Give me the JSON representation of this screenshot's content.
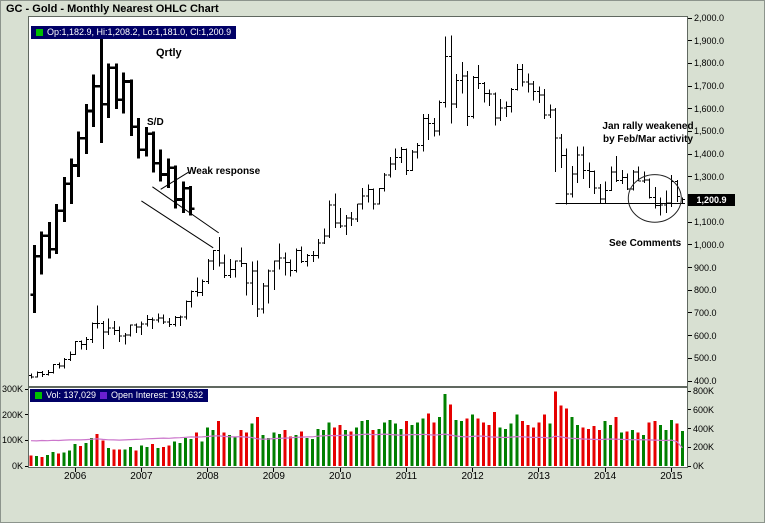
{
  "header": {
    "title": "GC - Gold - Monthly Nearest OHLC Chart"
  },
  "quote_strip": {
    "text": "Op:1,182.9, Hi:1,208.2, Lo:1,181.0, Cl:1,200.9"
  },
  "volume_strip": {
    "vol_label": "Vol: 137,029",
    "oi_label": "Open Interest: 193,632"
  },
  "colors": {
    "strip_bg": "#000066",
    "legend_green": "#00c000",
    "legend_purple": "#6a1fd0",
    "volume_up": "#008000",
    "volume_down": "#e60000",
    "oi_line": "#cc77cc",
    "bar_black": "#000000",
    "current_tag_bg": "#000000",
    "current_tag_fg": "#ffffff",
    "page_bg": "#d8e0d2",
    "panel_bg": "#ffffff"
  },
  "chart_data": {
    "type": "ohlc",
    "title": "GC - Gold - Monthly Nearest OHLC Chart",
    "current_price_label": "1,200.9",
    "annotations": {
      "qrtly": "Qrtly",
      "sd": "S/D",
      "weak_response": "Weak response",
      "jan_rally": [
        "Jan rally weakened",
        "by Feb/Mar activity"
      ],
      "see_comments": "See Comments"
    },
    "price_axis": {
      "min": 400,
      "max": 2000,
      "tick_step": 100,
      "tick_values": [
        2000,
        1900,
        1800,
        1700,
        1600,
        1500,
        1400,
        1300,
        1200,
        1100,
        1000,
        900,
        800,
        700,
        600,
        500,
        400
      ],
      "tick_labels": [
        "2,000.0",
        "1,900.0",
        "1,800.0",
        "1,700.0",
        "1,600.0",
        "1,500.0",
        "1,400.0",
        "1,300.0",
        "1,200.0",
        "1,100.0",
        "1,000.0",
        "900.0",
        "800.0",
        "700.0",
        "600.0",
        "500.0",
        "400.0"
      ]
    },
    "x_axis": {
      "year_labels": [
        "2006",
        "2007",
        "2008",
        "2009",
        "2010",
        "2011",
        "2012",
        "2013",
        "2014",
        "2015"
      ],
      "year_month_indices": [
        8,
        20,
        32,
        44,
        56,
        68,
        80,
        92,
        104,
        116
      ]
    },
    "monthly_ohlc": [
      [
        425,
        432,
        412,
        418
      ],
      [
        418,
        442,
        415,
        437
      ],
      [
        437,
        444,
        418,
        429
      ],
      [
        429,
        448,
        424,
        438
      ],
      [
        438,
        476,
        433,
        472
      ],
      [
        472,
        482,
        456,
        466
      ],
      [
        466,
        502,
        455,
        495
      ],
      [
        495,
        531,
        488,
        517
      ],
      [
        517,
        577,
        515,
        575
      ],
      [
        575,
        579,
        538,
        561
      ],
      [
        561,
        594,
        536,
        582
      ],
      [
        582,
        658,
        568,
        654
      ],
      [
        654,
        732,
        631,
        653
      ],
      [
        653,
        664,
        542,
        616
      ],
      [
        616,
        676,
        603,
        634
      ],
      [
        634,
        664,
        602,
        623
      ],
      [
        623,
        640,
        573,
        599
      ],
      [
        599,
        611,
        560,
        603
      ],
      [
        603,
        650,
        596,
        646
      ],
      [
        646,
        654,
        612,
        638
      ],
      [
        638,
        663,
        602,
        651
      ],
      [
        651,
        692,
        640,
        672
      ],
      [
        672,
        680,
        629,
        669
      ],
      [
        669,
        698,
        657,
        677
      ],
      [
        677,
        693,
        652,
        659
      ],
      [
        659,
        677,
        639,
        650
      ],
      [
        650,
        687,
        640,
        679
      ],
      [
        679,
        688,
        642,
        681
      ],
      [
        681,
        755,
        671,
        750
      ],
      [
        750,
        800,
        725,
        795
      ],
      [
        795,
        856,
        773,
        789
      ],
      [
        789,
        848,
        775,
        838
      ],
      [
        838,
        937,
        827,
        928
      ],
      [
        928,
        978,
        890,
        975
      ],
      [
        975,
        1034,
        904,
        921
      ],
      [
        921,
        957,
        853,
        865
      ],
      [
        865,
        937,
        855,
        891
      ],
      [
        891,
        931,
        856,
        928
      ],
      [
        928,
        989,
        902,
        918
      ],
      [
        918,
        921,
        777,
        833
      ],
      [
        833,
        927,
        736,
        884
      ],
      [
        884,
        931,
        681,
        718
      ],
      [
        718,
        831,
        698,
        819
      ],
      [
        819,
        892,
        741,
        884
      ],
      [
        884,
        931,
        801,
        928
      ],
      [
        928,
        1007,
        892,
        942
      ],
      [
        942,
        966,
        864,
        922
      ],
      [
        922,
        936,
        860,
        888
      ],
      [
        888,
        985,
        879,
        975
      ],
      [
        975,
        992,
        920,
        927
      ],
      [
        927,
        960,
        904,
        953
      ],
      [
        953,
        972,
        925,
        953
      ],
      [
        953,
        1026,
        941,
        1008
      ],
      [
        1008,
        1072,
        1004,
        1040
      ],
      [
        1040,
        1196,
        1031,
        1175
      ],
      [
        1175,
        1227,
        1075,
        1096
      ],
      [
        1096,
        1163,
        1074,
        1083
      ],
      [
        1083,
        1131,
        1044,
        1118
      ],
      [
        1118,
        1146,
        1084,
        1114
      ],
      [
        1114,
        1181,
        1100,
        1180
      ],
      [
        1180,
        1250,
        1156,
        1215
      ],
      [
        1215,
        1266,
        1186,
        1245
      ],
      [
        1245,
        1249,
        1157,
        1181
      ],
      [
        1181,
        1250,
        1177,
        1248
      ],
      [
        1248,
        1317,
        1235,
        1307
      ],
      [
        1307,
        1388,
        1296,
        1357
      ],
      [
        1357,
        1424,
        1330,
        1386
      ],
      [
        1386,
        1432,
        1361,
        1421
      ],
      [
        1421,
        1424,
        1309,
        1327
      ],
      [
        1327,
        1418,
        1325,
        1409
      ],
      [
        1409,
        1448,
        1380,
        1438
      ],
      [
        1438,
        1577,
        1411,
        1556
      ],
      [
        1556,
        1577,
        1462,
        1536
      ],
      [
        1536,
        1559,
        1478,
        1502
      ],
      [
        1502,
        1637,
        1483,
        1628
      ],
      [
        1628,
        1918,
        1605,
        1831
      ],
      [
        1831,
        1923,
        1535,
        1622
      ],
      [
        1622,
        1754,
        1604,
        1725
      ],
      [
        1725,
        1806,
        1667,
        1745
      ],
      [
        1745,
        1767,
        1523,
        1566
      ],
      [
        1566,
        1744,
        1556,
        1737
      ],
      [
        1737,
        1792,
        1688,
        1711
      ],
      [
        1711,
        1717,
        1627,
        1668
      ],
      [
        1668,
        1685,
        1613,
        1664
      ],
      [
        1664,
        1672,
        1527,
        1560
      ],
      [
        1560,
        1642,
        1547,
        1604
      ],
      [
        1604,
        1633,
        1563,
        1610
      ],
      [
        1610,
        1692,
        1584,
        1685
      ],
      [
        1685,
        1798,
        1681,
        1774
      ],
      [
        1774,
        1798,
        1698,
        1719
      ],
      [
        1719,
        1755,
        1672,
        1710
      ],
      [
        1710,
        1723,
        1636,
        1676
      ],
      [
        1676,
        1697,
        1626,
        1660
      ],
      [
        1660,
        1687,
        1554,
        1572
      ],
      [
        1572,
        1618,
        1560,
        1595
      ],
      [
        1595,
        1604,
        1321,
        1472
      ],
      [
        1472,
        1488,
        1338,
        1393
      ],
      [
        1393,
        1424,
        1179,
        1224
      ],
      [
        1224,
        1348,
        1208,
        1312
      ],
      [
        1312,
        1434,
        1272,
        1396
      ],
      [
        1396,
        1434,
        1291,
        1327
      ],
      [
        1327,
        1362,
        1251,
        1323
      ],
      [
        1323,
        1327,
        1225,
        1250
      ],
      [
        1250,
        1268,
        1182,
        1202
      ],
      [
        1202,
        1280,
        1184,
        1240
      ],
      [
        1240,
        1345,
        1237,
        1321
      ],
      [
        1321,
        1392,
        1277,
        1284
      ],
      [
        1284,
        1331,
        1268,
        1296
      ],
      [
        1296,
        1315,
        1241,
        1246
      ],
      [
        1246,
        1330,
        1240,
        1322
      ],
      [
        1322,
        1346,
        1281,
        1281
      ],
      [
        1281,
        1324,
        1273,
        1287
      ],
      [
        1287,
        1293,
        1204,
        1209
      ],
      [
        1209,
        1256,
        1160,
        1173
      ],
      [
        1173,
        1208,
        1130,
        1176
      ],
      [
        1176,
        1239,
        1141,
        1184
      ],
      [
        1184,
        1308,
        1168,
        1279
      ],
      [
        1279,
        1285,
        1190,
        1213
      ],
      [
        1182.9,
        1208.2,
        1181.0,
        1200.9
      ]
    ],
    "quarterly_overlay": {
      "start_month_index": 0.5,
      "spacing_months": 1.35,
      "bars": [
        [
          780,
          1000,
          700,
          950
        ],
        [
          950,
          1060,
          870,
          1040
        ],
        [
          1040,
          1100,
          940,
          980
        ],
        [
          980,
          1180,
          960,
          1150
        ],
        [
          1150,
          1300,
          1100,
          1270
        ],
        [
          1270,
          1380,
          1180,
          1350
        ],
        [
          1350,
          1500,
          1300,
          1470
        ],
        [
          1470,
          1620,
          1400,
          1590
        ],
        [
          1590,
          1750,
          1520,
          1700
        ],
        [
          1700,
          1930,
          1450,
          1620
        ],
        [
          1620,
          1800,
          1560,
          1780
        ],
        [
          1780,
          1800,
          1600,
          1640
        ],
        [
          1640,
          1760,
          1580,
          1720
        ],
        [
          1720,
          1730,
          1480,
          1520
        ],
        [
          1520,
          1560,
          1380,
          1420
        ],
        [
          1420,
          1520,
          1390,
          1490
        ],
        [
          1490,
          1500,
          1320,
          1360
        ],
        [
          1360,
          1420,
          1280,
          1310
        ],
        [
          1310,
          1380,
          1250,
          1340
        ],
        [
          1340,
          1350,
          1160,
          1200
        ],
        [
          1200,
          1280,
          1140,
          1250
        ],
        [
          1250,
          1260,
          1130,
          1160
        ]
      ]
    },
    "overlays": {
      "horizontal_line": {
        "from_month": 95,
        "to_month": 118.5,
        "price": 1183
      },
      "trendlines": [
        [
          20,
          1194,
          33,
          987
        ],
        [
          22,
          1256,
          34,
          1053
        ],
        [
          23.5,
          1245,
          28.5,
          1320
        ]
      ],
      "ellipse": {
        "month": 113,
        "price": 1205,
        "rx_months": 4.8,
        "ry_price": 105
      }
    },
    "volume_axis": {
      "left_max": 300,
      "right_max": 800,
      "left_values": [
        300,
        200,
        100,
        0
      ],
      "left_labels": [
        "300K",
        "200K",
        "100K",
        "0K"
      ],
      "right_values": [
        800,
        600,
        400,
        200,
        0
      ],
      "right_labels": [
        "800K",
        "600K",
        "400K",
        "200K",
        "0K"
      ]
    },
    "volume_k": [
      40,
      38,
      35,
      42,
      55,
      48,
      52,
      60,
      85,
      78,
      90,
      110,
      125,
      100,
      70,
      65,
      65,
      65,
      75,
      60,
      80,
      75,
      85,
      70,
      75,
      80,
      95,
      90,
      110,
      105,
      130,
      95,
      150,
      140,
      175,
      130,
      120,
      115,
      140,
      130,
      165,
      190,
      120,
      110,
      130,
      125,
      140,
      115,
      120,
      135,
      110,
      105,
      145,
      140,
      170,
      150,
      160,
      140,
      135,
      150,
      175,
      180,
      140,
      145,
      170,
      180,
      165,
      145,
      175,
      160,
      170,
      185,
      205,
      170,
      190,
      280,
      240,
      180,
      175,
      185,
      200,
      185,
      170,
      160,
      210,
      150,
      145,
      165,
      200,
      175,
      160,
      150,
      170,
      200,
      165,
      290,
      235,
      225,
      190,
      160,
      150,
      145,
      155,
      140,
      175,
      160,
      190,
      130,
      135,
      140,
      130,
      120,
      170,
      175,
      160,
      140,
      180,
      165,
      137
    ],
    "open_interest_k": [
      270,
      268,
      272,
      270,
      274,
      272,
      276,
      278,
      280,
      278,
      282,
      286,
      290,
      284,
      280,
      278,
      276,
      278,
      282,
      284,
      286,
      290,
      292,
      294,
      298,
      296,
      300,
      302,
      306,
      310,
      308,
      310,
      315,
      320,
      322,
      316,
      312,
      310,
      314,
      308,
      304,
      290,
      286,
      288,
      292,
      296,
      298,
      300,
      306,
      308,
      310,
      312,
      318,
      322,
      326,
      322,
      326,
      330,
      328,
      332,
      336,
      340,
      334,
      336,
      340,
      336,
      332,
      328,
      332,
      336,
      334,
      338,
      334,
      330,
      334,
      340,
      330,
      320,
      314,
      310,
      316,
      320,
      318,
      312,
      308,
      306,
      304,
      308,
      314,
      312,
      308,
      304,
      306,
      304,
      298,
      318,
      310,
      300,
      296,
      292,
      288,
      286,
      284,
      282,
      286,
      288,
      286,
      284,
      282,
      280,
      282,
      280,
      278,
      276,
      274,
      272,
      276,
      260,
      194
    ]
  }
}
